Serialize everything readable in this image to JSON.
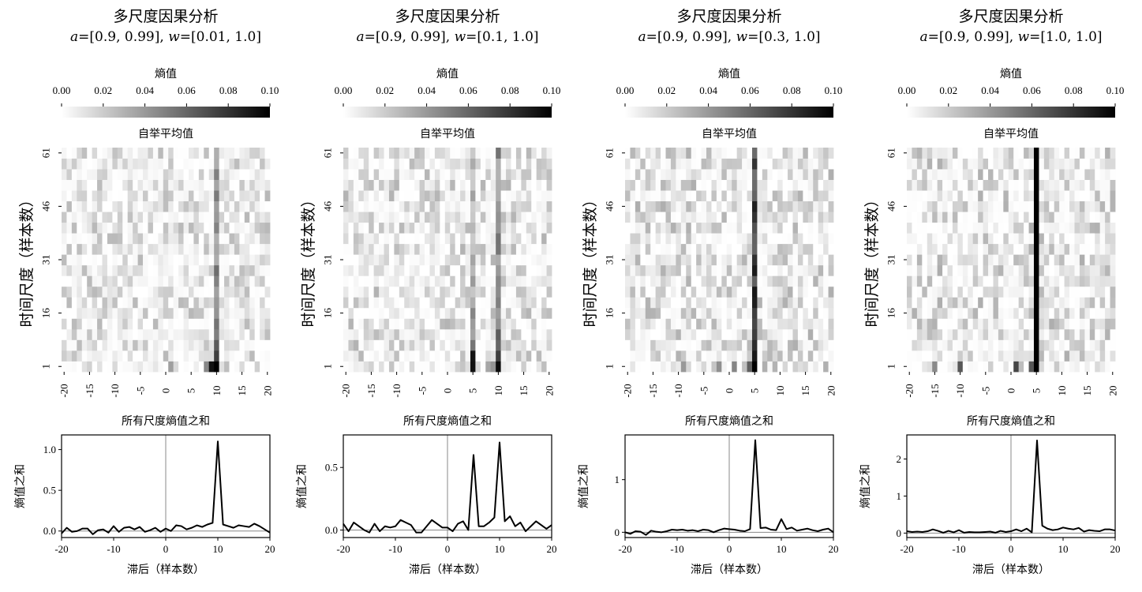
{
  "chart_data": [
    {
      "type": "heatmap",
      "title": "多尺度因果分析",
      "params": {
        "a": "[0.9, 0.99]",
        "w": "[0.01, 1.0]"
      },
      "colorbar": {
        "label": "熵值",
        "ticks": [
          "0.00",
          "0.02",
          "0.04",
          "0.06",
          "0.08",
          "0.10"
        ],
        "range": [
          0,
          0.1
        ],
        "colormap": "white-to-black"
      },
      "heatmap": {
        "title": "自举平均值",
        "ylabel": "时间尺度（样本数）",
        "yticks": [
          "1",
          "16",
          "31",
          "46",
          "61"
        ],
        "xticks": [
          "-20",
          "-15",
          "-10",
          "-5",
          "0",
          "5",
          "10",
          "15",
          "20"
        ],
        "x_range": [
          -20,
          20
        ],
        "rows": 21,
        "seed": 11,
        "noise": 0.014,
        "hot": [
          {
            "lag": 10,
            "base": 0.03,
            "peak": 0.085,
            "decay": 3
          },
          {
            "lag": 9,
            "base": 0,
            "peak": 0.07,
            "decay": 0.6
          },
          {
            "lag": 8,
            "base": 0,
            "peak": 0.045,
            "decay": 0.6
          },
          {
            "lag": 1,
            "base": 0,
            "peak": 0.025,
            "decay": 0.8
          }
        ]
      },
      "line": {
        "title": "所有尺度熵值之和",
        "ylabel": "熵值之和",
        "xlabel": "滞后（样本数）",
        "xticks": [
          "-20",
          "-10",
          "0",
          "10",
          "20"
        ],
        "yticks": [
          0.0,
          0.5,
          1.0
        ],
        "ytick_labels": [
          "0.0",
          "0.5",
          "1.0"
        ],
        "ylim": [
          -0.08,
          1.18
        ],
        "x": [
          -20,
          -19,
          -18,
          -17,
          -16,
          -15,
          -14,
          -13,
          -12,
          -11,
          -10,
          -9,
          -8,
          -7,
          -6,
          -5,
          -4,
          -3,
          -2,
          -1,
          0,
          1,
          2,
          3,
          4,
          5,
          6,
          7,
          8,
          9,
          10,
          11,
          12,
          13,
          14,
          15,
          16,
          17,
          18,
          19,
          20
        ],
        "y": [
          -0.03,
          0.04,
          -0.01,
          0.0,
          0.03,
          0.03,
          -0.04,
          0.01,
          0.02,
          -0.02,
          0.06,
          -0.01,
          0.04,
          0.05,
          0.02,
          0.05,
          -0.01,
          0.01,
          0.04,
          -0.01,
          0.03,
          0.0,
          0.07,
          0.06,
          0.02,
          0.04,
          0.07,
          0.05,
          0.08,
          0.1,
          1.1,
          0.08,
          0.06,
          0.04,
          0.07,
          0.06,
          0.05,
          0.09,
          0.06,
          0.02,
          -0.02
        ]
      }
    },
    {
      "type": "heatmap",
      "title": "多尺度因果分析",
      "params": {
        "a": "[0.9, 0.99]",
        "w": "[0.1, 1.0]"
      },
      "colorbar": {
        "label": "熵值",
        "ticks": [
          "0.00",
          "0.02",
          "0.04",
          "0.06",
          "0.08",
          "0.10"
        ],
        "range": [
          0,
          0.1
        ],
        "colormap": "white-to-black"
      },
      "heatmap": {
        "title": "自举平均值",
        "ylabel": "时间尺度（样本数）",
        "yticks": [
          "1",
          "16",
          "31",
          "46",
          "61"
        ],
        "xticks": [
          "-20",
          "-15",
          "-10",
          "-5",
          "0",
          "5",
          "10",
          "15",
          "20"
        ],
        "x_range": [
          -20,
          20
        ],
        "rows": 21,
        "seed": 23,
        "noise": 0.015,
        "hot": [
          {
            "lag": 5,
            "base": 0.02,
            "peak": 0.09,
            "decay": 2
          },
          {
            "lag": 10,
            "base": 0.03,
            "peak": 0.075,
            "decay": 3
          },
          {
            "lag": 8,
            "base": 0,
            "peak": 0.035,
            "decay": 0.7
          },
          {
            "lag": 9,
            "base": 0,
            "peak": 0.04,
            "decay": 0.7
          }
        ]
      },
      "line": {
        "title": "所有尺度熵值之和",
        "ylabel": "熵值之和",
        "xlabel": "滞后（样本数）",
        "xticks": [
          "-20",
          "-10",
          "0",
          "10",
          "20"
        ],
        "yticks": [
          0.0,
          0.5
        ],
        "ytick_labels": [
          "0.0",
          "0.5"
        ],
        "ylim": [
          -0.06,
          0.76
        ],
        "x": [
          -20,
          -19,
          -18,
          -17,
          -16,
          -15,
          -14,
          -13,
          -12,
          -11,
          -10,
          -9,
          -8,
          -7,
          -6,
          -5,
          -4,
          -3,
          -2,
          -1,
          0,
          1,
          2,
          3,
          4,
          5,
          6,
          7,
          8,
          9,
          10,
          11,
          12,
          13,
          14,
          15,
          16,
          17,
          18,
          19,
          20
        ],
        "y": [
          0.05,
          -0.01,
          0.06,
          0.03,
          0.0,
          -0.02,
          0.05,
          -0.01,
          0.03,
          0.02,
          0.03,
          0.08,
          0.06,
          0.04,
          -0.02,
          -0.02,
          0.03,
          0.08,
          0.05,
          0.02,
          0.02,
          -0.01,
          0.05,
          0.07,
          0.0,
          0.6,
          0.03,
          0.03,
          0.06,
          0.1,
          0.7,
          0.07,
          0.11,
          0.03,
          0.06,
          -0.01,
          0.03,
          0.07,
          0.04,
          0.01,
          0.04
        ]
      }
    },
    {
      "type": "heatmap",
      "title": "多尺度因果分析",
      "params": {
        "a": "[0.9, 0.99]",
        "w": "[0.3, 1.0]"
      },
      "colorbar": {
        "label": "熵值",
        "ticks": [
          "0.00",
          "0.02",
          "0.04",
          "0.06",
          "0.08",
          "0.10"
        ],
        "range": [
          0,
          0.1
        ],
        "colormap": "white-to-black"
      },
      "heatmap": {
        "title": "自举平均值",
        "ylabel": "时间尺度（样本数）",
        "yticks": [
          "1",
          "16",
          "31",
          "46",
          "61"
        ],
        "xticks": [
          "-20",
          "-15",
          "-10",
          "-5",
          "0",
          "5",
          "10",
          "15",
          "20"
        ],
        "x_range": [
          -20,
          20
        ],
        "rows": 21,
        "seed": 37,
        "noise": 0.016,
        "hot": [
          {
            "lag": 5,
            "base": 0.055,
            "peak": 0.1,
            "decay": 4
          },
          {
            "lag": 4,
            "base": 0,
            "peak": 0.06,
            "decay": 0.6
          },
          {
            "lag": 1,
            "base": 0,
            "peak": 0.045,
            "decay": 0.6
          },
          {
            "lag": -9,
            "base": 0,
            "peak": 0.04,
            "decay": 0.5
          },
          {
            "lag": -2,
            "base": 0,
            "peak": 0.04,
            "decay": 0.6
          }
        ]
      },
      "line": {
        "title": "所有尺度熵值之和",
        "ylabel": "熵值之和",
        "xlabel": "滞后（样本数）",
        "xticks": [
          "-20",
          "-10",
          "0",
          "10",
          "20"
        ],
        "yticks": [
          0,
          1
        ],
        "ytick_labels": [
          "0",
          "1"
        ],
        "ylim": [
          -0.1,
          1.85
        ],
        "x": [
          -20,
          -19,
          -18,
          -17,
          -16,
          -15,
          -14,
          -13,
          -12,
          -11,
          -10,
          -9,
          -8,
          -7,
          -6,
          -5,
          -4,
          -3,
          -2,
          -1,
          0,
          1,
          2,
          3,
          4,
          5,
          6,
          7,
          8,
          9,
          10,
          11,
          12,
          13,
          14,
          15,
          16,
          17,
          18,
          19,
          20
        ],
        "y": [
          0.0,
          -0.03,
          0.02,
          0.01,
          -0.05,
          0.03,
          0.01,
          0.0,
          0.02,
          0.05,
          0.04,
          0.05,
          0.03,
          0.04,
          0.02,
          0.05,
          0.04,
          0.0,
          0.04,
          0.07,
          0.06,
          0.05,
          0.03,
          0.02,
          0.06,
          1.75,
          0.08,
          0.09,
          0.05,
          0.04,
          0.25,
          0.06,
          0.09,
          0.03,
          0.05,
          0.07,
          0.04,
          0.02,
          0.05,
          0.07,
          0.0
        ]
      }
    },
    {
      "type": "heatmap",
      "title": "多尺度因果分析",
      "params": {
        "a": "[0.9, 0.99]",
        "w": "[1.0, 1.0]"
      },
      "colorbar": {
        "label": "熵值",
        "ticks": [
          "0.00",
          "0.02",
          "0.04",
          "0.06",
          "0.08",
          "0.10"
        ],
        "range": [
          0,
          0.1
        ],
        "colormap": "white-to-black"
      },
      "heatmap": {
        "title": "自举平均值",
        "ylabel": "时间尺度（样本数）",
        "yticks": [
          "1",
          "16",
          "31",
          "46",
          "61"
        ],
        "xticks": [
          "-20",
          "-15",
          "-10",
          "-5",
          "0",
          "5",
          "10",
          "15",
          "20"
        ],
        "x_range": [
          -20,
          20
        ],
        "rows": 21,
        "seed": 53,
        "noise": 0.016,
        "hot": [
          {
            "lag": 5,
            "base": 0.1,
            "peak": 0.1,
            "decay": 5
          },
          {
            "lag": 4,
            "base": 0,
            "peak": 0.065,
            "decay": 0.6
          },
          {
            "lag": 1,
            "base": 0,
            "peak": 0.07,
            "decay": 0.6
          },
          {
            "lag": -15,
            "base": 0,
            "peak": 0.045,
            "decay": 0.5
          },
          {
            "lag": -10,
            "base": 0,
            "peak": 0.045,
            "decay": 0.5
          }
        ]
      },
      "line": {
        "title": "所有尺度熵值之和",
        "ylabel": "熵值之和",
        "xlabel": "滞后（样本数）",
        "xticks": [
          "-20",
          "-10",
          "0",
          "10",
          "20"
        ],
        "yticks": [
          0,
          1,
          2
        ],
        "ytick_labels": [
          "0",
          "1",
          "2"
        ],
        "ylim": [
          -0.12,
          2.65
        ],
        "x": [
          -20,
          -19,
          -18,
          -17,
          -16,
          -15,
          -14,
          -13,
          -12,
          -11,
          -10,
          -9,
          -8,
          -7,
          -6,
          -5,
          -4,
          -3,
          -2,
          -1,
          0,
          1,
          2,
          3,
          4,
          5,
          6,
          7,
          8,
          9,
          10,
          11,
          12,
          13,
          14,
          15,
          16,
          17,
          18,
          19,
          20
        ],
        "y": [
          0.05,
          0.03,
          0.04,
          0.03,
          0.05,
          0.1,
          0.06,
          0.01,
          0.06,
          0.02,
          0.08,
          0.01,
          0.03,
          0.02,
          0.02,
          0.03,
          0.04,
          0.01,
          0.06,
          0.03,
          0.05,
          0.1,
          0.05,
          0.12,
          0.02,
          2.5,
          0.2,
          0.12,
          0.08,
          0.1,
          0.15,
          0.12,
          0.1,
          0.14,
          0.04,
          0.08,
          0.06,
          0.05,
          0.1,
          0.1,
          0.07
        ]
      }
    }
  ]
}
